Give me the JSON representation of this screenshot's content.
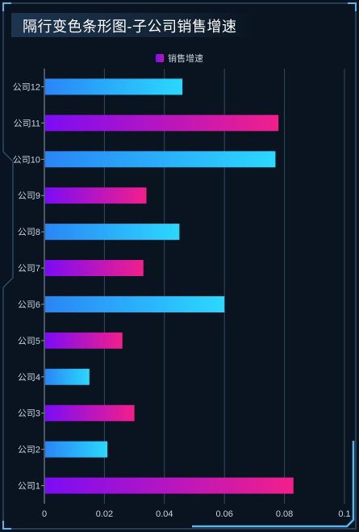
{
  "title": "隔行变色条形图-子公司销售增速",
  "chart_data": {
    "type": "bar",
    "orientation": "horizontal",
    "categories": [
      "公司1",
      "公司2",
      "公司3",
      "公司4",
      "公司5",
      "公司6",
      "公司7",
      "公司8",
      "公司9",
      "公司10",
      "公司11",
      "公司12"
    ],
    "series": [
      {
        "name": "销售增速",
        "values": [
          0.083,
          0.021,
          0.03,
          0.015,
          0.026,
          0.06,
          0.033,
          0.045,
          0.034,
          0.077,
          0.078,
          0.046
        ]
      }
    ],
    "xlim": [
      0,
      0.1
    ],
    "xticks": [
      "0",
      "0.02",
      "0.04",
      "0.06",
      "0.08",
      "0.1"
    ],
    "grid": true,
    "legend_position": "top-center",
    "colors": {
      "odd_start": "#7b0cf5",
      "odd_end": "#f21f8a",
      "even_start": "#2a86f6",
      "even_end": "#2bd8ff",
      "frame": "#2c4a6b",
      "frame_accent": "#5ab4f0",
      "grid": "#33475e",
      "label": "#c9d3e0"
    }
  }
}
